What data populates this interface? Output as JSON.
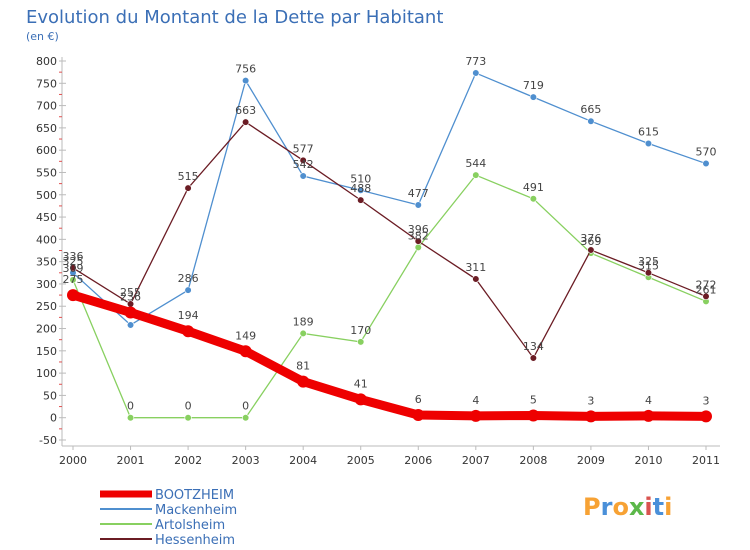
{
  "chart_data": {
    "type": "line",
    "title": "Evolution du Montant de la Dette par Habitant",
    "subtitle": "(en €)",
    "categories": [
      "2000",
      "2001",
      "2002",
      "2003",
      "2004",
      "2005",
      "2006",
      "2007",
      "2008",
      "2009",
      "2010",
      "2011"
    ],
    "ylim": [
      -50,
      800
    ],
    "yticks": [
      -50,
      0,
      50,
      100,
      150,
      200,
      250,
      300,
      350,
      400,
      450,
      500,
      550,
      600,
      650,
      700,
      750,
      800
    ],
    "grid": false,
    "legend": "bottom-left",
    "series": [
      {
        "name": "BOOTZHEIM",
        "color": "#ee0000",
        "values": [
          275,
          236,
          194,
          149,
          81,
          41,
          6,
          4,
          5,
          3,
          4,
          3
        ],
        "labels": [
          "275",
          "236",
          "194",
          "149",
          "81",
          "41",
          "6",
          "4",
          "5",
          "3",
          "4",
          "3"
        ]
      },
      {
        "name": "Mackenheim",
        "color": "#4f8fcf",
        "values": [
          325,
          208,
          286,
          756,
          542,
          510,
          477,
          773,
          719,
          665,
          615,
          570
        ],
        "labels": [
          "325",
          "",
          "286",
          "756",
          "542",
          "510",
          "477",
          "773",
          "719",
          "665",
          "615",
          "570"
        ]
      },
      {
        "name": "Artolsheim",
        "color": "#88d060",
        "values": [
          309,
          0,
          0,
          0,
          189,
          170,
          382,
          544,
          491,
          369,
          315,
          261
        ],
        "labels": [
          "309",
          "0",
          "0",
          "0",
          "189",
          "170",
          "382",
          "544",
          "491",
          "369",
          "315",
          "261"
        ]
      },
      {
        "name": "Hessenheim",
        "color": "#6b1c24",
        "values": [
          336,
          255,
          515,
          663,
          577,
          488,
          396,
          311,
          134,
          376,
          325,
          272
        ],
        "labels": [
          "336",
          "255",
          "515",
          "663",
          "577",
          "488",
          "396",
          "311",
          "134",
          "376",
          "325",
          "272"
        ]
      }
    ]
  },
  "logo": {
    "text": "Proxiti",
    "colors": [
      "#f7a234",
      "#4a90d9",
      "#f7a234",
      "#5cb84a",
      "#d9534f",
      "#4a90d9",
      "#f7a234"
    ]
  }
}
